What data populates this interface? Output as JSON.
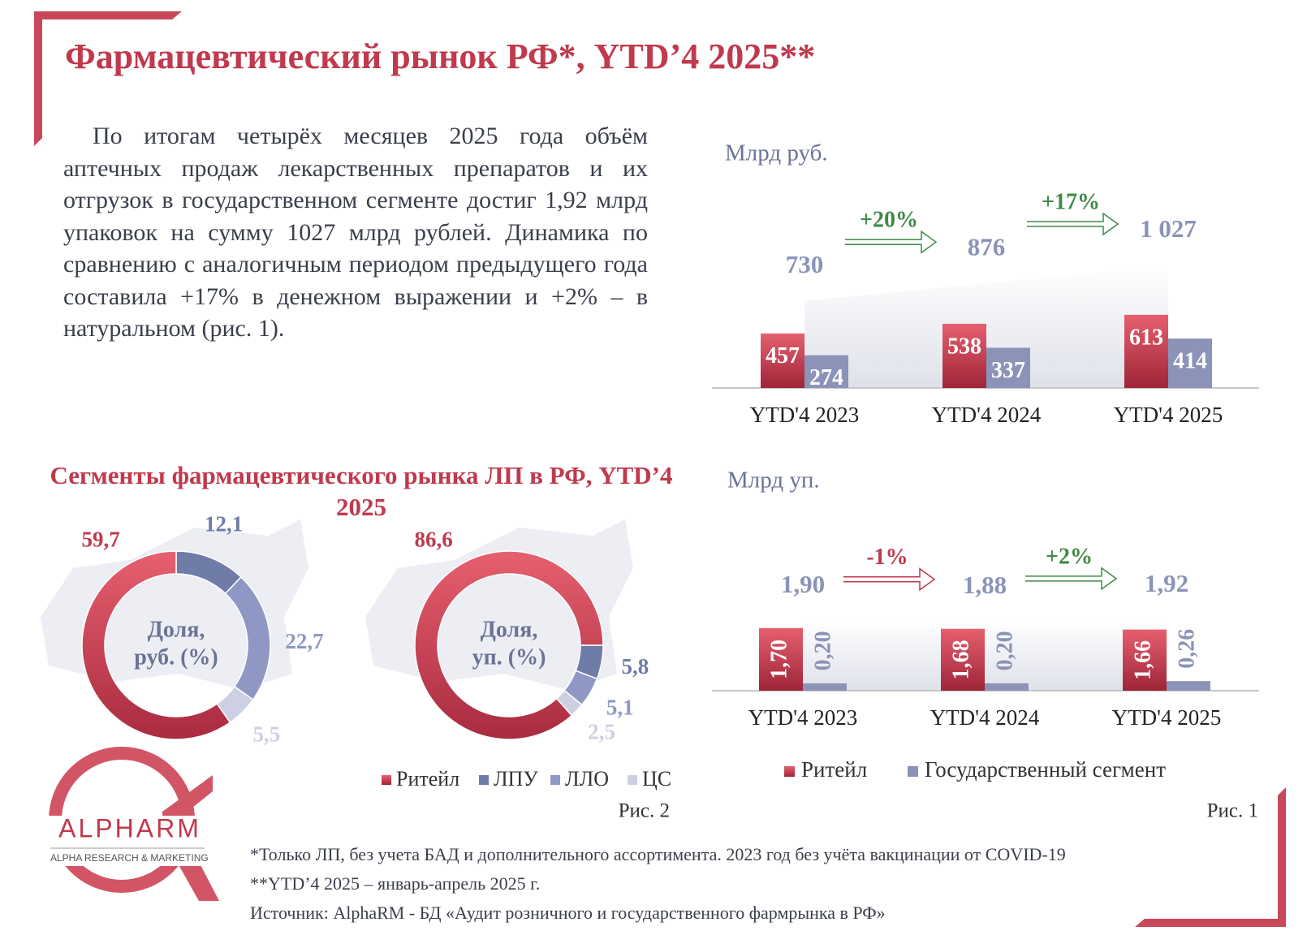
{
  "header": {
    "title": "Фармацевтический рынок РФ*, YTD’4 2025**"
  },
  "body": {
    "paragraph": "По итогам четырёх месяцев 2025 года объём аптечных продаж лекарственных препаратов и их отгрузок в государственном сегменте достиг 1,92 млрд упаковок на сумму 1027 млрд рублей. Динамика по сравнению с аналогичным периодом предыдущего года составила +17% в денежном выражении и +2% – в натуральном (рис. 1)."
  },
  "figure_labels": [
    "Рис. 1",
    "Рис. 2"
  ],
  "footnotes": [
    "*Только ЛП, без учета БАД и дополнительного ассортимента. 2023 год без учёта вакцинации от COVID-19",
    "**YTD’4 2025 – январь-апрель 2025 г.",
    "Источник: AlphaRM - БД «Аудит розничного и государственного фармрынка в РФ»"
  ],
  "logo": {
    "name": "ALPHARM",
    "tagline": "ALPHA RESEARCH & MARKETING"
  },
  "chart_data": [
    {
      "type": "bar",
      "unit": "Млрд руб.",
      "categories": [
        "YTD'4 2023",
        "YTD'4 2024",
        "YTD'4 2025"
      ],
      "series": [
        {
          "name": "Ритейл",
          "color": "#d4455a",
          "values": [
            457,
            538,
            613
          ]
        },
        {
          "name": "Государственный сегмент",
          "color": "#8b93b8",
          "values": [
            274,
            337,
            414
          ]
        }
      ],
      "totals": [
        730,
        876,
        1027
      ],
      "totals_labels": [
        "730",
        "876",
        "1 027"
      ],
      "changes": [
        "+20%",
        "+17%"
      ]
    },
    {
      "type": "bar",
      "unit": "Млрд уп.",
      "categories": [
        "YTD'4 2023",
        "YTD'4 2024",
        "YTD'4 2025"
      ],
      "series": [
        {
          "color": "#d4455a",
          "values": [
            1.7,
            1.68,
            1.66
          ],
          "value_labels": [
            "1,70",
            "1,68",
            "1,66"
          ]
        },
        {
          "color": "#8b93b8",
          "values": [
            0.2,
            0.2,
            0.26
          ],
          "value_labels": [
            "0,20",
            "0,20",
            "0,26"
          ]
        }
      ],
      "totals": [
        1.9,
        1.88,
        1.92
      ],
      "totals_labels": [
        "1,90",
        "1,88",
        "1,92"
      ],
      "changes": [
        "-1%",
        "+2%"
      ]
    },
    {
      "type": "donut",
      "title": "Сегменты фармацевтического рынка ЛП в РФ, YTD’4 2025",
      "categories": [
        "Ритейл",
        "ЛПУ",
        "ЛЛО",
        "ЦС"
      ],
      "colors": [
        "#d4455a",
        "#6f7ca8",
        "#8f98c4",
        "#cdd0e2"
      ],
      "center_label": [
        "Доля,",
        "руб. (%)"
      ],
      "start_angle": 0,
      "values": [
        59.7,
        12.1,
        22.7,
        5.5
      ],
      "value_labels": [
        "59,7",
        "12,1",
        "22,7",
        "5,5"
      ]
    },
    {
      "type": "donut",
      "colors": [
        "#d4455a",
        "#6f7ca8",
        "#8f98c4",
        "#cdd0e2"
      ],
      "center_label": [
        "Доля,",
        "уп. (%)"
      ],
      "start_angle": 90,
      "values": [
        86.6,
        5.8,
        5.1,
        2.5
      ],
      "value_labels": [
        "86,6",
        "5,8",
        "5,1",
        "2,5"
      ]
    }
  ]
}
